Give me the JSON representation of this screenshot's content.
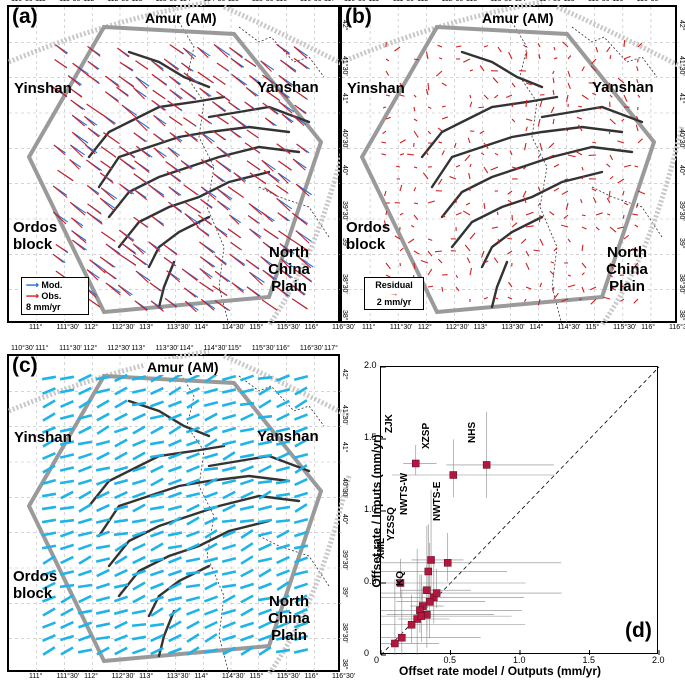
{
  "panels": {
    "a": {
      "label": "(a)",
      "title": "Amur (AM)",
      "regions": {
        "yinshan": "Yinshan",
        "yanshan": "Yanshan",
        "ordos": "Ordos block",
        "ncp": "North China Plain"
      },
      "legend": {
        "mod": "Mod.",
        "obs": "Obs.",
        "scale": "8 mm/yr"
      }
    },
    "b": {
      "label": "(b)",
      "title": "Amur (AM)",
      "regions": {
        "yinshan": "Yinshan",
        "yanshan": "Yanshan",
        "ordos": "Ordos block",
        "ncp": "North China Plain"
      },
      "legend": {
        "title": "Residual",
        "scale": "2 mm/yr"
      }
    },
    "c": {
      "label": "(c)",
      "title": "Amur (AM)",
      "regions": {
        "yinshan": "Yinshan",
        "yanshan": "Yanshan",
        "ordos": "Ordos block",
        "ncp": "North China Plain"
      }
    },
    "d": {
      "label": "(d)"
    }
  },
  "map_ticks": {
    "top": [
      "110°30'",
      "111°",
      "111°30'",
      "112°",
      "112°30'",
      "113°",
      "113°30'",
      "114°",
      "114°30'",
      "115°",
      "115°30'",
      "116°",
      "116°30'",
      "117°"
    ],
    "bottom": [
      "111°",
      "111°30'",
      "112°",
      "112°30'",
      "113°",
      "113°30'",
      "114°",
      "114°30'",
      "115°",
      "115°30'",
      "116°",
      "116°30'"
    ],
    "lat": [
      "42°",
      "41°30'",
      "41°",
      "40°30'",
      "40°",
      "39°30'",
      "39°",
      "38°30'",
      "38°"
    ]
  },
  "colors": {
    "model": "#1f6fe0",
    "observed": "#d21f1f",
    "strain": "#1fb4e8",
    "boundary": "#9a9a9a",
    "fault": "#333333",
    "point": "#b3173f"
  },
  "chart_data": {
    "type": "scatter",
    "xlabel": "Offset rate model / Outputs (mm/yr)",
    "ylabel": "Offset rate / Inputs (mm/yr)",
    "xlim": [
      0,
      2.0
    ],
    "ylim": [
      0,
      2.0
    ],
    "xticks": [
      "0",
      "0.5",
      "1.0",
      "1.5",
      "2.0"
    ],
    "yticks": [
      "0",
      "0.5",
      "1.0",
      "1.5",
      "2.0"
    ],
    "points": [
      {
        "x": 0.25,
        "y": 1.33,
        "label": "ZJK"
      },
      {
        "x": 0.52,
        "y": 1.25,
        "label": "XZSP"
      },
      {
        "x": 0.76,
        "y": 1.32,
        "label": "NHS"
      },
      {
        "x": 0.36,
        "y": 0.66,
        "label": "NWTS-W"
      },
      {
        "x": 0.48,
        "y": 0.64,
        "label": "NWTS-E"
      },
      {
        "x": 0.34,
        "y": 0.58,
        "label": "YZSSQ"
      },
      {
        "x": 0.33,
        "y": 0.45,
        "label": "KQ"
      },
      {
        "x": 0.14,
        "y": 0.5,
        "label": "XML"
      },
      {
        "x": 0.38,
        "y": 0.4,
        "label": ""
      },
      {
        "x": 0.35,
        "y": 0.37,
        "label": ""
      },
      {
        "x": 0.3,
        "y": 0.34,
        "label": ""
      },
      {
        "x": 0.28,
        "y": 0.31,
        "label": ""
      },
      {
        "x": 0.33,
        "y": 0.28,
        "label": ""
      },
      {
        "x": 0.26,
        "y": 0.25,
        "label": ""
      },
      {
        "x": 0.22,
        "y": 0.21,
        "label": ""
      },
      {
        "x": 0.15,
        "y": 0.12,
        "label": ""
      },
      {
        "x": 0.1,
        "y": 0.08,
        "label": ""
      },
      {
        "x": 0.4,
        "y": 0.43,
        "label": ""
      },
      {
        "x": 0.29,
        "y": 0.27,
        "label": ""
      }
    ]
  }
}
